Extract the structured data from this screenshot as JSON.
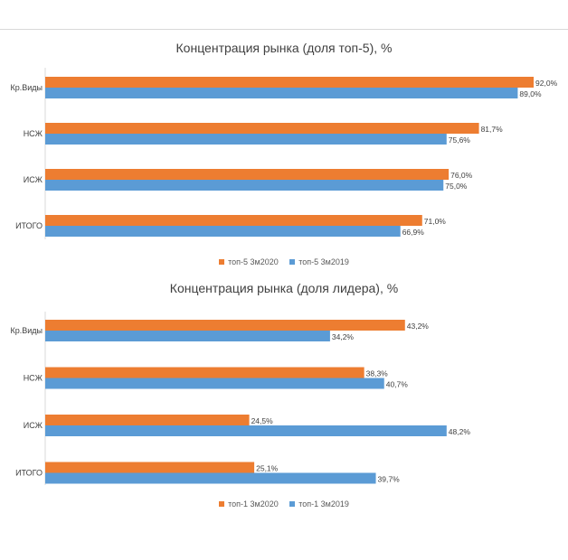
{
  "colors": {
    "series_2020": "#ED7D31",
    "series_2019": "#5B9BD5"
  },
  "chart_data": [
    {
      "type": "bar",
      "orientation": "horizontal",
      "title": "Концентрация рынка (доля топ-5), %",
      "categories": [
        "Кр.Виды",
        "НСЖ",
        "ИСЖ",
        "ИТОГО"
      ],
      "series": [
        {
          "name": "топ-5 3м2020",
          "values": [
            92.0,
            81.7,
            76.0,
            71.0
          ],
          "labels": [
            "92,0%",
            "81,7%",
            "76,0%",
            "71,0%"
          ]
        },
        {
          "name": "топ-5 3м2019",
          "values": [
            89.0,
            75.6,
            75.0,
            66.9
          ],
          "labels": [
            "89,0%",
            "75,6%",
            "75,0%",
            "66,9%"
          ]
        }
      ],
      "xlim": [
        0,
        100
      ],
      "grid": false,
      "legend": "bottom"
    },
    {
      "type": "bar",
      "orientation": "horizontal",
      "title": "Концентрация рынка (доля лидера), %",
      "categories": [
        "Кр.Виды",
        "НСЖ",
        "ИСЖ",
        "ИТОГО"
      ],
      "series": [
        {
          "name": "топ-1 3м2020",
          "values": [
            43.2,
            38.3,
            24.5,
            25.1
          ],
          "labels": [
            "43,2%",
            "38,3%",
            "24,5%",
            "25,1%"
          ]
        },
        {
          "name": "топ-1 3м2019",
          "values": [
            34.2,
            40.7,
            48.2,
            39.7
          ],
          "labels": [
            "34,2%",
            "40,7%",
            "48,2%",
            "39,7%"
          ]
        }
      ],
      "xlim": [
        0,
        53
      ],
      "grid": false,
      "legend": "bottom"
    }
  ]
}
